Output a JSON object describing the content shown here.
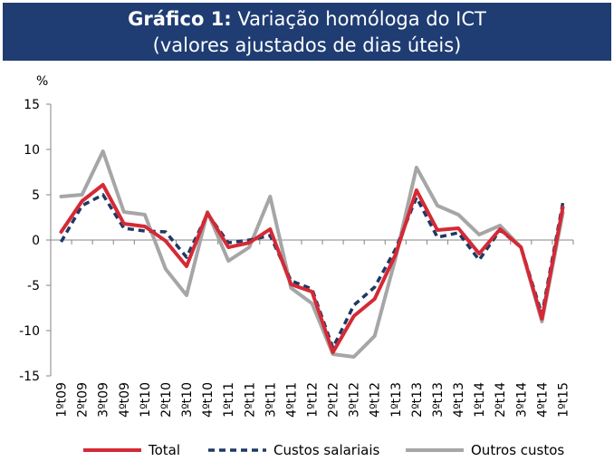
{
  "chart_data": {
    "type": "line",
    "title_bold": "Gráfico 1:",
    "title_rest": "Variação homóloga do ICT",
    "subtitle": "(valores ajustados de dias úteis)",
    "ylabel": "%",
    "xlabel": "",
    "ylim": [
      -15,
      15
    ],
    "yticks": [
      15,
      10,
      5,
      0,
      -5,
      -10,
      -15
    ],
    "categories": [
      "1ºt09",
      "2ºt09",
      "3ºt09",
      "4ºt09",
      "1ºt10",
      "2ºt10",
      "3ºt10",
      "4ºt10",
      "1ºt11",
      "2ºt11",
      "3ºt11",
      "4ºt11",
      "1ºt12",
      "2ºt12",
      "3ºt12",
      "4ºt12",
      "1ºt13",
      "2ºt13",
      "3ºt13",
      "4ºt13",
      "1ºt14",
      "2ºt14",
      "3ºt14",
      "4ºt14",
      "1ºt15"
    ],
    "series": [
      {
        "name": "Outros custos",
        "color": "#a6a6a6",
        "style": "solid",
        "values": [
          4.8,
          5.0,
          9.8,
          3.1,
          2.8,
          -3.2,
          -6.1,
          3.1,
          -2.3,
          -0.8,
          4.8,
          -5.3,
          -7.0,
          -12.6,
          -12.9,
          -10.6,
          -2.0,
          8.0,
          3.8,
          2.8,
          0.6,
          1.6,
          -0.8,
          -9.0,
          3.0
        ]
      },
      {
        "name": "Custos salariais",
        "color": "#1f3864",
        "style": "dashed",
        "values": [
          -0.2,
          3.8,
          5.0,
          1.3,
          1.0,
          0.9,
          -1.9,
          2.9,
          -0.3,
          0.0,
          0.5,
          -4.5,
          -5.4,
          -11.9,
          -7.2,
          -5.2,
          -1.0,
          4.7,
          0.3,
          0.8,
          -2.2,
          1.1,
          -0.8,
          -8.2,
          4.1
        ]
      },
      {
        "name": "Total",
        "color": "#d42a35",
        "style": "solid",
        "values": [
          0.9,
          4.3,
          6.1,
          1.8,
          1.5,
          -0.1,
          -2.9,
          3.0,
          -0.8,
          -0.3,
          1.2,
          -4.9,
          -5.7,
          -12.4,
          -8.4,
          -6.5,
          -1.6,
          5.5,
          1.1,
          1.3,
          -1.5,
          1.2,
          -0.8,
          -8.7,
          3.6
        ]
      }
    ],
    "legend": [
      {
        "name": "Total",
        "color": "#d42a35",
        "style": "solid"
      },
      {
        "name": "Custos salariais",
        "color": "#1f3864",
        "style": "dashed"
      },
      {
        "name": "Outros custos",
        "color": "#a6a6a6",
        "style": "solid"
      }
    ],
    "grid": false,
    "legend_position": "bottom"
  }
}
